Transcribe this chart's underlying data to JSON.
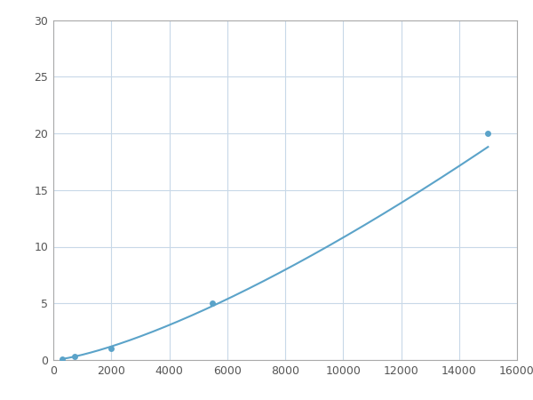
{
  "x": [
    300,
    750,
    2000,
    5500,
    15000
  ],
  "y": [
    0.1,
    0.3,
    1.0,
    5.0,
    20.0
  ],
  "line_color": "#5ba3c9",
  "marker_color": "#5ba3c9",
  "marker_size": 5,
  "linewidth": 1.5,
  "xlim": [
    0,
    16000
  ],
  "ylim": [
    0,
    30
  ],
  "xticks": [
    0,
    2000,
    4000,
    6000,
    8000,
    10000,
    12000,
    14000,
    16000
  ],
  "yticks": [
    0,
    5,
    10,
    15,
    20,
    25,
    30
  ],
  "grid_color": "#c8d8e8",
  "background_color": "#ffffff",
  "spine_color": "#aaaaaa",
  "tick_color": "#555555",
  "tick_labelsize": 9
}
